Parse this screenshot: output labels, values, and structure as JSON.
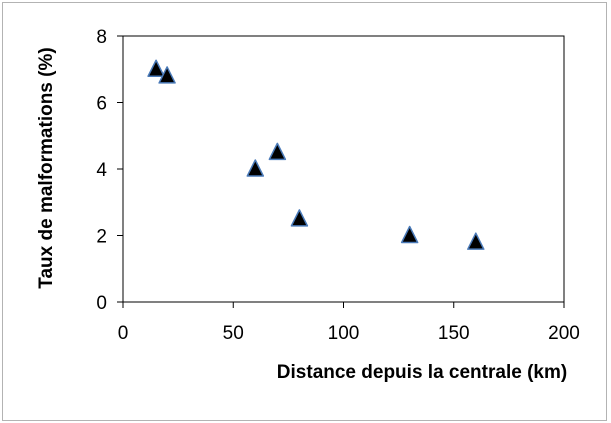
{
  "chart_data": {
    "type": "scatter",
    "title": "",
    "xlabel": "Distance depuis la centrale (km)",
    "ylabel": "Taux de malformations (%)",
    "xlim": [
      0,
      200
    ],
    "ylim": [
      0,
      8
    ],
    "x_ticks": [
      0,
      50,
      100,
      150,
      200
    ],
    "y_ticks": [
      0,
      2,
      4,
      6,
      8
    ],
    "grid": false,
    "legend": "none",
    "marker": "triangle",
    "marker_fill": "#000000",
    "marker_edge": "#4a7ab8",
    "points": [
      {
        "x": 15,
        "y": 7.0
      },
      {
        "x": 20,
        "y": 6.8
      },
      {
        "x": 60,
        "y": 4.0
      },
      {
        "x": 70,
        "y": 4.5
      },
      {
        "x": 80,
        "y": 2.5
      },
      {
        "x": 130,
        "y": 2.0
      },
      {
        "x": 160,
        "y": 1.8
      }
    ]
  }
}
